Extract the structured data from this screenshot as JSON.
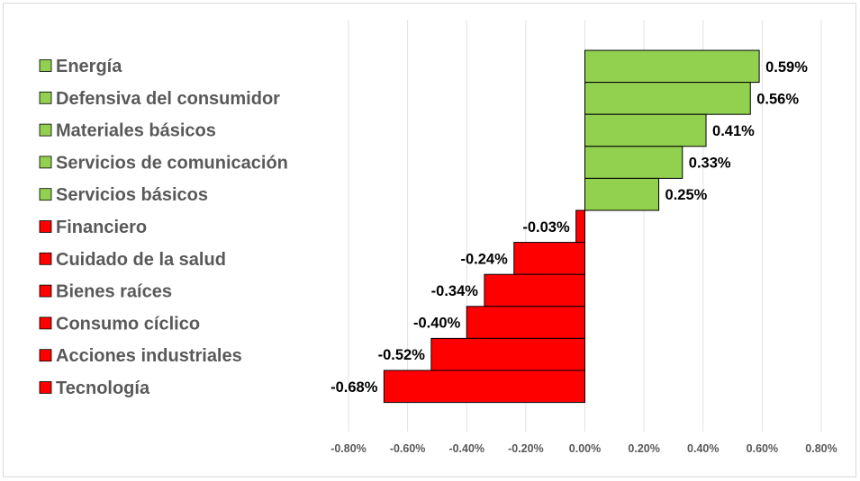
{
  "chart_data": {
    "type": "bar",
    "orientation": "horizontal",
    "title": "",
    "xlabel": "",
    "ylabel": "",
    "xlim": [
      -0.8,
      0.8
    ],
    "grid": true,
    "legend": "left",
    "colors": {
      "positive": "#92d050",
      "negative": "#ff0000"
    },
    "categories": [
      "Energía",
      "Defensiva del consumidor",
      "Materiales básicos",
      "Servicios de comunicación",
      "Servicios básicos",
      "Financiero",
      "Cuidado de la salud",
      "Bienes raíces",
      "Consumo cíclico",
      "Acciones industriales",
      "Tecnología"
    ],
    "values": [
      0.59,
      0.56,
      0.41,
      0.33,
      0.25,
      -0.03,
      -0.24,
      -0.34,
      -0.4,
      -0.52,
      -0.68
    ],
    "data_labels": [
      "0.59%",
      "0.56%",
      "0.41%",
      "0.33%",
      "0.25%",
      "-0.03%",
      "-0.24%",
      "-0.34%",
      "-0.40%",
      "-0.52%",
      "-0.68%"
    ],
    "x_ticks": [
      -0.8,
      -0.6,
      -0.4,
      -0.2,
      0.0,
      0.2,
      0.4,
      0.6,
      0.8
    ],
    "x_tick_labels": [
      "-0.80%",
      "-0.60%",
      "-0.40%",
      "-0.20%",
      "0.00%",
      "0.20%",
      "0.40%",
      "0.60%",
      "0.80%"
    ]
  }
}
